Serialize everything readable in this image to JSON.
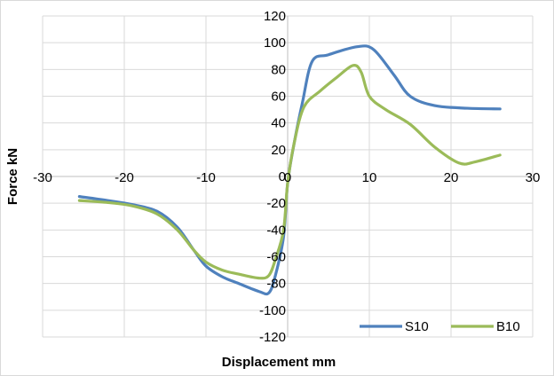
{
  "chart_data": {
    "type": "line",
    "title": "",
    "xlabel": "Displacement mm",
    "ylabel": "Force kN",
    "xlim": [
      -30,
      30
    ],
    "ylim": [
      -120,
      120
    ],
    "xticks": [
      -30,
      -20,
      -10,
      0,
      10,
      20,
      30
    ],
    "yticks": [
      -120,
      -100,
      -80,
      -60,
      -40,
      -20,
      0,
      20,
      40,
      60,
      80,
      100,
      120
    ],
    "grid": true,
    "legend_position": "bottom-right",
    "series": [
      {
        "name": "S10",
        "color": "#4f81bd",
        "points": [
          [
            -25.5,
            -15
          ],
          [
            -22,
            -18
          ],
          [
            -19,
            -21
          ],
          [
            -16,
            -26
          ],
          [
            -13.5,
            -38
          ],
          [
            -11.5,
            -55
          ],
          [
            -10,
            -67
          ],
          [
            -8,
            -75
          ],
          [
            -6,
            -80
          ],
          [
            -3.5,
            -86
          ],
          [
            -2.3,
            -87
          ],
          [
            -1.5,
            -74
          ],
          [
            -0.5,
            -45
          ],
          [
            0,
            -5
          ],
          [
            0.8,
            25
          ],
          [
            1.8,
            55
          ],
          [
            3,
            86
          ],
          [
            5,
            91
          ],
          [
            8.5,
            97
          ],
          [
            10.5,
            95
          ],
          [
            13,
            76
          ],
          [
            15,
            60
          ],
          [
            18,
            53
          ],
          [
            22,
            51
          ],
          [
            26,
            50.5
          ]
        ]
      },
      {
        "name": "B10",
        "color": "#9bbb59",
        "points": [
          [
            -25.5,
            -18
          ],
          [
            -22,
            -19.5
          ],
          [
            -19,
            -22
          ],
          [
            -16,
            -28
          ],
          [
            -13.5,
            -40
          ],
          [
            -11.5,
            -55
          ],
          [
            -10,
            -64
          ],
          [
            -8,
            -70
          ],
          [
            -6,
            -73
          ],
          [
            -3.5,
            -76
          ],
          [
            -2.3,
            -74
          ],
          [
            -1.5,
            -62
          ],
          [
            -0.5,
            -40
          ],
          [
            0,
            -5
          ],
          [
            0.8,
            25
          ],
          [
            2,
            52
          ],
          [
            4,
            64
          ],
          [
            6,
            74
          ],
          [
            8,
            83
          ],
          [
            9,
            78
          ],
          [
            10,
            60
          ],
          [
            12,
            50
          ],
          [
            15,
            39
          ],
          [
            18,
            22
          ],
          [
            21,
            10
          ],
          [
            23,
            11
          ],
          [
            26,
            16
          ]
        ]
      }
    ]
  }
}
